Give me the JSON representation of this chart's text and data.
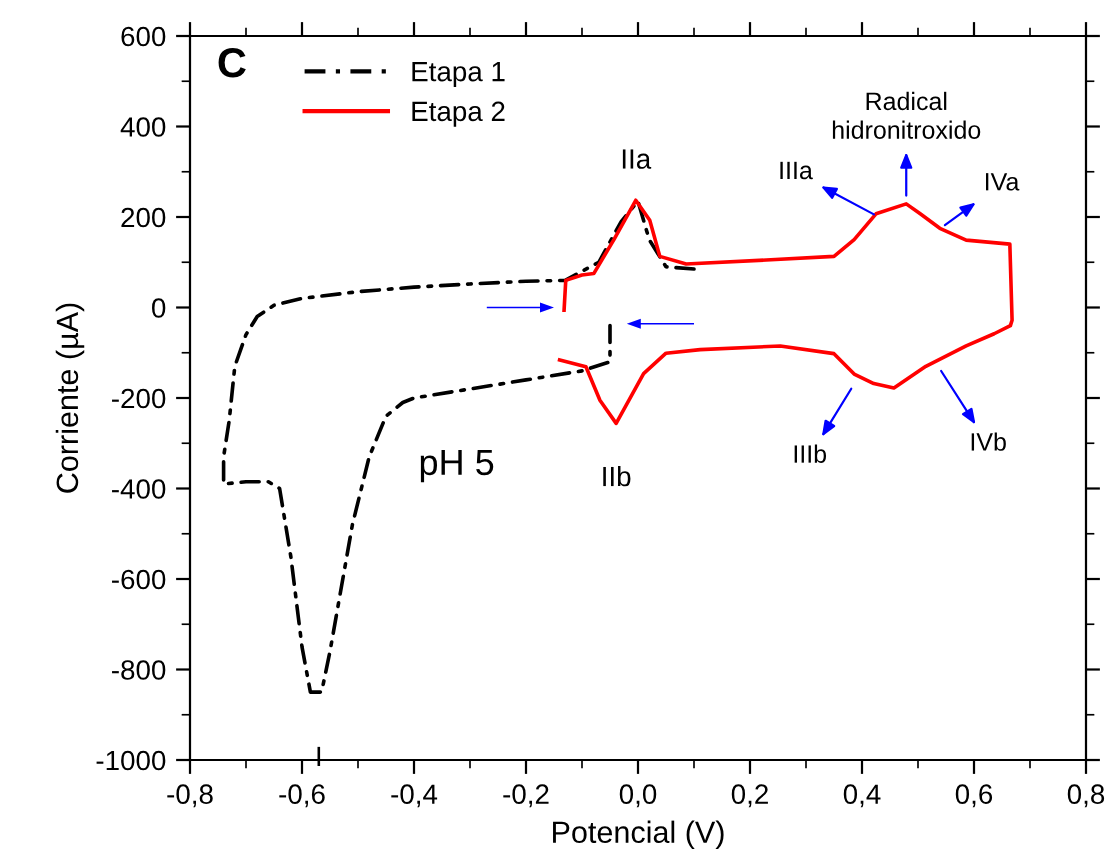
{
  "chart_data": {
    "type": "line",
    "xlabel": "Potencial (V)",
    "ylabel": "Corriente (µA)",
    "xlim": [
      -0.8,
      0.8
    ],
    "ylim": [
      -1000,
      600
    ],
    "xticks": [
      {
        "value": -0.8,
        "label": "-0,8"
      },
      {
        "value": -0.6,
        "label": "-0,6"
      },
      {
        "value": -0.4,
        "label": "-0,4"
      },
      {
        "value": -0.2,
        "label": "-0,2"
      },
      {
        "value": 0.0,
        "label": "0,0"
      },
      {
        "value": 0.2,
        "label": "0,2"
      },
      {
        "value": 0.4,
        "label": "0,4"
      },
      {
        "value": 0.6,
        "label": "0,6"
      },
      {
        "value": 0.8,
        "label": "0,8"
      }
    ],
    "yticks": [
      -1000,
      -800,
      -600,
      -400,
      -200,
      0,
      200,
      400,
      600
    ],
    "grid": false,
    "legend": "top left",
    "marker": "none",
    "series": [
      {
        "name": "Etapa 1",
        "color": "#000000",
        "line_style": "dashdot",
        "x": [
          0.1,
          0.05,
          0.02,
          0.0,
          -0.03,
          -0.07,
          -0.13,
          -0.2,
          -0.3,
          -0.4,
          -0.5,
          -0.6,
          -0.65,
          -0.68,
          -0.7,
          -0.72,
          -0.73,
          -0.74,
          -0.74,
          -0.7,
          -0.66,
          -0.64,
          -0.62,
          -0.6,
          -0.585,
          -0.565,
          -0.55,
          -0.53,
          -0.51,
          -0.48,
          -0.45,
          -0.42,
          -0.4,
          -0.3,
          -0.2,
          -0.1,
          -0.05,
          -0.05
        ],
        "values": [
          85,
          90,
          150,
          235,
          190,
          100,
          60,
          58,
          52,
          45,
          35,
          20,
          5,
          -20,
          -60,
          -130,
          -250,
          -330,
          -390,
          -385,
          -385,
          -400,
          -550,
          -750,
          -850,
          -850,
          -760,
          -620,
          -480,
          -330,
          -240,
          -210,
          -200,
          -180,
          -160,
          -140,
          -120,
          -40
        ]
      },
      {
        "name": "Etapa 2",
        "color": "#ff0000",
        "line_style": "solid",
        "x": [
          -0.132,
          -0.129,
          -0.1,
          -0.079,
          -0.043,
          -0.004,
          0.021,
          0.039,
          0.086,
          0.229,
          0.35,
          0.386,
          0.425,
          0.479,
          0.504,
          0.539,
          0.586,
          0.664,
          0.668,
          0.665,
          0.636,
          0.586,
          0.514,
          0.457,
          0.421,
          0.386,
          0.35,
          0.254,
          0.111,
          0.05,
          0.01,
          -0.039,
          -0.068,
          -0.093,
          -0.14
        ],
        "values": [
          -6,
          60,
          72,
          75,
          150,
          237,
          193,
          113,
          96,
          105,
          113,
          150,
          207,
          229,
          207,
          175,
          149,
          140,
          -28,
          -40,
          -58,
          -85,
          -130,
          -178,
          -168,
          -147,
          -102,
          -85,
          -93,
          -101,
          -146,
          -256,
          -205,
          -131,
          -116
        ]
      }
    ],
    "annotations": [
      "C",
      "pH 5",
      {
        "text": "I",
        "x": -0.57,
        "y": -850
      },
      {
        "text": "IIa",
        "x": -0.004,
        "y": 237
      },
      {
        "text": "IIb",
        "x": -0.039,
        "y": -256
      },
      {
        "text": "IIIa",
        "x": 0.43,
        "y": 200
      },
      {
        "text": "Radical\nhidronitroxido",
        "x": 0.479,
        "y": 235
      },
      {
        "text": "IVa",
        "x": 0.54,
        "y": 175
      },
      {
        "text": "IIIb",
        "x": 0.386,
        "y": -169
      },
      {
        "text": "IVb",
        "x": 0.536,
        "y": -130
      }
    ]
  }
}
